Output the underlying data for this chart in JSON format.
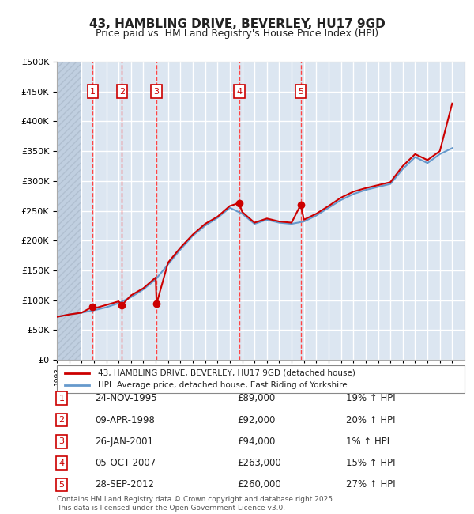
{
  "title": "43, HAMBLING DRIVE, BEVERLEY, HU17 9GD",
  "subtitle": "Price paid vs. HM Land Registry's House Price Index (HPI)",
  "footnote": "Contains HM Land Registry data © Crown copyright and database right 2025.\nThis data is licensed under the Open Government Licence v3.0.",
  "legend_house": "43, HAMBLING DRIVE, BEVERLEY, HU17 9GD (detached house)",
  "legend_hpi": "HPI: Average price, detached house, East Riding of Yorkshire",
  "transactions": [
    {
      "num": 1,
      "date": "24-NOV-1995",
      "price": 89000,
      "pct": "19%",
      "year": 1995.9
    },
    {
      "num": 2,
      "date": "09-APR-1998",
      "price": 92000,
      "pct": "20%",
      "year": 1998.27
    },
    {
      "num": 3,
      "date": "26-JAN-2001",
      "price": 94000,
      "pct": "1%",
      "year": 2001.07
    },
    {
      "num": 4,
      "date": "05-OCT-2007",
      "price": 263000,
      "pct": "15%",
      "year": 2007.76
    },
    {
      "num": 5,
      "date": "28-SEP-2012",
      "price": 260000,
      "pct": "27%",
      "year": 2012.74
    }
  ],
  "house_line_color": "#cc0000",
  "hpi_line_color": "#6699cc",
  "vline_color": "#ff4444",
  "marker_color": "#cc0000",
  "label_box_color": "#cc0000",
  "bg_color": "#dce6f1",
  "hatch_color": "#c0cfe0",
  "ylim": [
    0,
    500000
  ],
  "yticks": [
    0,
    50000,
    100000,
    150000,
    200000,
    250000,
    300000,
    350000,
    400000,
    450000,
    500000
  ],
  "xlim_start": 1993,
  "xlim_end": 2026,
  "grid_color": "#ffffff",
  "hpi_data_years": [
    1993,
    1994,
    1995,
    1996,
    1997,
    1998,
    1999,
    2000,
    2001,
    2002,
    2003,
    2004,
    2005,
    2006,
    2007,
    2008,
    2009,
    2010,
    2011,
    2012,
    2013,
    2014,
    2015,
    2016,
    2017,
    2018,
    2019,
    2020,
    2021,
    2022,
    2023,
    2024,
    2025
  ],
  "hpi_data_values": [
    72000,
    76000,
    79000,
    83000,
    88000,
    95000,
    105000,
    118000,
    135000,
    160000,
    185000,
    208000,
    225000,
    238000,
    255000,
    245000,
    228000,
    235000,
    230000,
    228000,
    232000,
    242000,
    255000,
    268000,
    278000,
    285000,
    290000,
    295000,
    320000,
    340000,
    330000,
    345000,
    355000
  ],
  "house_data_years": [
    1993,
    1994,
    1995,
    1995.9,
    1996,
    1997,
    1998,
    1998.27,
    1999,
    2000,
    2001,
    2001.07,
    2002,
    2003,
    2004,
    2005,
    2006,
    2007,
    2007.76,
    2008,
    2009,
    2010,
    2011,
    2012,
    2012.74,
    2013,
    2014,
    2015,
    2016,
    2017,
    2018,
    2019,
    2020,
    2021,
    2022,
    2023,
    2024,
    2025
  ],
  "house_data_values": [
    72000,
    76000,
    79000,
    89000,
    86000,
    92000,
    98000,
    92000,
    108000,
    120000,
    138000,
    94000,
    163000,
    188000,
    210000,
    228000,
    240000,
    258000,
    263000,
    248000,
    230000,
    237000,
    232000,
    230000,
    260000,
    235000,
    245000,
    258000,
    272000,
    282000,
    288000,
    293000,
    298000,
    325000,
    345000,
    335000,
    350000,
    430000
  ]
}
